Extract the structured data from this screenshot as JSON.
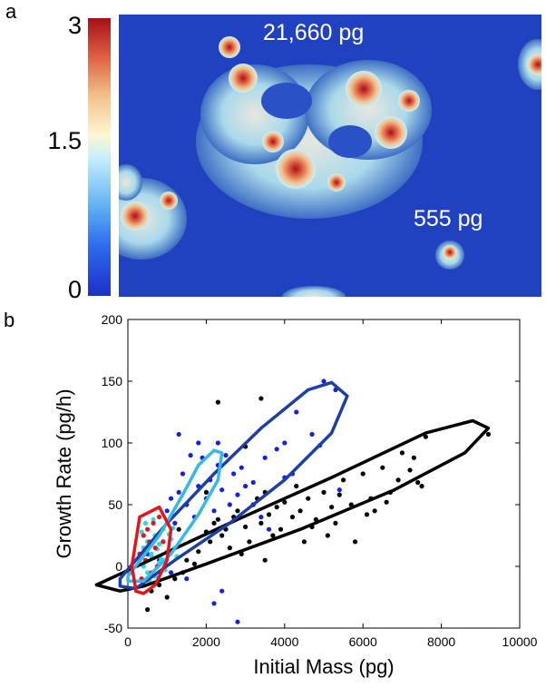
{
  "panels": {
    "a": "a",
    "b": "b"
  },
  "colorbar": {
    "max": "3",
    "mid": "1.5",
    "min": "0"
  },
  "afm": {
    "label_large": "21,660 pg",
    "label_small": "555 pg"
  },
  "colors": {
    "black": "#000000",
    "blue": "#1422e0",
    "cyan": "#2ed6e6",
    "red": "#e3141b",
    "dark_blue": "#1b3fa6",
    "light_blue": "#36b8e8"
  },
  "chart_data": {
    "type": "scatter",
    "xlabel": "Initial Mass (pg)",
    "ylabel": "Growth Rate (pg/h)",
    "xlim": [
      0,
      10000
    ],
    "ylim": [
      -50,
      200
    ],
    "xticks": [
      0,
      2000,
      4000,
      6000,
      8000,
      10000
    ],
    "yticks": [
      -50,
      0,
      50,
      100,
      150,
      200
    ],
    "series": [
      {
        "color": "#000000",
        "points": [
          [
            800,
            -15
          ],
          [
            1200,
            -10
          ],
          [
            1500,
            5
          ],
          [
            1800,
            12
          ],
          [
            2000,
            28
          ],
          [
            2200,
            35
          ],
          [
            2300,
            38
          ],
          [
            2500,
            30
          ],
          [
            2600,
            15
          ],
          [
            2700,
            40
          ],
          [
            2800,
            45
          ],
          [
            3000,
            32
          ],
          [
            3100,
            20
          ],
          [
            3200,
            50
          ],
          [
            3300,
            55
          ],
          [
            3400,
            35
          ],
          [
            3500,
            60
          ],
          [
            3600,
            42
          ],
          [
            3700,
            25
          ],
          [
            3800,
            48
          ],
          [
            3900,
            30
          ],
          [
            4000,
            52
          ],
          [
            4200,
            40
          ],
          [
            4400,
            45
          ],
          [
            4500,
            20
          ],
          [
            4600,
            55
          ],
          [
            4800,
            38
          ],
          [
            5000,
            60
          ],
          [
            5200,
            48
          ],
          [
            5300,
            35
          ],
          [
            5500,
            70
          ],
          [
            5700,
            50
          ],
          [
            5800,
            20
          ],
          [
            6000,
            75
          ],
          [
            6200,
            55
          ],
          [
            6300,
            45
          ],
          [
            6500,
            80
          ],
          [
            6700,
            60
          ],
          [
            6900,
            70
          ],
          [
            7000,
            92
          ],
          [
            7200,
            78
          ],
          [
            7400,
            68
          ],
          [
            7500,
            65
          ],
          [
            7600,
            105
          ],
          [
            3400,
            136
          ],
          [
            2300,
            133
          ],
          [
            9200,
            107
          ],
          [
            500,
            -35
          ],
          [
            600,
            -20
          ],
          [
            1000,
            -25
          ],
          [
            1400,
            -5
          ],
          [
            1700,
            2
          ],
          [
            2100,
            20
          ],
          [
            2400,
            25
          ],
          [
            2900,
            10
          ],
          [
            3500,
            5
          ],
          [
            4300,
            65
          ],
          [
            4700,
            32
          ],
          [
            5100,
            25
          ],
          [
            5400,
            58
          ],
          [
            6100,
            42
          ],
          [
            6600,
            52
          ],
          [
            7300,
            88
          ],
          [
            3000,
            97
          ],
          [
            2000,
            60
          ],
          [
            1300,
            30
          ]
        ]
      },
      {
        "color": "#1422e0",
        "points": [
          [
            500,
            10
          ],
          [
            700,
            25
          ],
          [
            900,
            20
          ],
          [
            1000,
            45
          ],
          [
            1100,
            55
          ],
          [
            1200,
            35
          ],
          [
            1300,
            60
          ],
          [
            1400,
            75
          ],
          [
            1500,
            50
          ],
          [
            1600,
            90
          ],
          [
            1700,
            40
          ],
          [
            1800,
            65
          ],
          [
            1900,
            88
          ],
          [
            2000,
            55
          ],
          [
            2100,
            70
          ],
          [
            2200,
            45
          ],
          [
            2300,
            82
          ],
          [
            2400,
            62
          ],
          [
            2500,
            90
          ],
          [
            2600,
            50
          ],
          [
            2700,
            75
          ],
          [
            2800,
            58
          ],
          [
            2900,
            80
          ],
          [
            3000,
            65
          ],
          [
            3200,
            68
          ],
          [
            3400,
            40
          ],
          [
            3600,
            30
          ],
          [
            3800,
            95
          ],
          [
            4000,
            100
          ],
          [
            4300,
            125
          ],
          [
            4700,
            107
          ],
          [
            4900,
            98
          ],
          [
            5000,
            150
          ],
          [
            5300,
            143
          ],
          [
            5400,
            62
          ],
          [
            2200,
            -30
          ],
          [
            2400,
            -20
          ],
          [
            1500,
            -10
          ],
          [
            1100,
            -5
          ],
          [
            800,
            5
          ],
          [
            1300,
            107
          ],
          [
            1800,
            100
          ],
          [
            2300,
            100
          ],
          [
            2800,
            -45
          ],
          [
            4000,
            72
          ],
          [
            4200,
            75
          ],
          [
            3500,
            88
          ]
        ]
      },
      {
        "color": "#2ed6e6",
        "points": [
          [
            300,
            5
          ],
          [
            400,
            15
          ],
          [
            500,
            20
          ],
          [
            600,
            10
          ],
          [
            700,
            25
          ],
          [
            800,
            18
          ],
          [
            900,
            30
          ],
          [
            1000,
            12
          ],
          [
            1100,
            22
          ],
          [
            1200,
            15
          ],
          [
            400,
            0
          ],
          [
            500,
            -5
          ],
          [
            600,
            8
          ],
          [
            700,
            -8
          ],
          [
            800,
            3
          ],
          [
            350,
            28
          ],
          [
            450,
            35
          ],
          [
            550,
            -12
          ],
          [
            650,
            38
          ],
          [
            750,
            14
          ],
          [
            850,
            6
          ],
          [
            950,
            -3
          ],
          [
            1050,
            26
          ],
          [
            1150,
            31
          ],
          [
            1250,
            8
          ]
        ]
      },
      {
        "color": "#e3141b",
        "points": [
          [
            300,
            10
          ],
          [
            400,
            25
          ],
          [
            500,
            30
          ],
          [
            600,
            -5
          ],
          [
            700,
            15
          ],
          [
            800,
            40
          ],
          [
            350,
            -10
          ],
          [
            450,
            5
          ],
          [
            550,
            20
          ],
          [
            650,
            35
          ],
          [
            750,
            0
          ],
          [
            900,
            20
          ]
        ]
      }
    ],
    "ellipses": [
      {
        "color": "#000000",
        "points": [
          [
            -800,
            -15
          ],
          [
            900,
            10
          ],
          [
            2800,
            38
          ],
          [
            5200,
            72
          ],
          [
            7600,
            108
          ],
          [
            8800,
            118
          ],
          [
            9200,
            112
          ],
          [
            8600,
            92
          ],
          [
            6800,
            62
          ],
          [
            4400,
            30
          ],
          [
            2000,
            2
          ],
          [
            400,
            -16
          ],
          [
            -200,
            -20
          ]
        ]
      },
      {
        "color": "#1b3fa6",
        "points": [
          [
            -200,
            -10
          ],
          [
            1000,
            35
          ],
          [
            2200,
            75
          ],
          [
            3400,
            112
          ],
          [
            4600,
            143
          ],
          [
            5200,
            149
          ],
          [
            5600,
            138
          ],
          [
            5200,
            108
          ],
          [
            4000,
            70
          ],
          [
            2600,
            35
          ],
          [
            1200,
            5
          ],
          [
            200,
            -18
          ],
          [
            -200,
            -16
          ]
        ]
      },
      {
        "color": "#36b8e8",
        "points": [
          [
            0,
            -8
          ],
          [
            800,
            25
          ],
          [
            1400,
            58
          ],
          [
            1800,
            82
          ],
          [
            2200,
            94
          ],
          [
            2400,
            92
          ],
          [
            2300,
            70
          ],
          [
            1800,
            42
          ],
          [
            1100,
            10
          ],
          [
            400,
            -12
          ],
          [
            0,
            -12
          ]
        ]
      },
      {
        "color": "#e3141b",
        "points": [
          [
            200,
            -18
          ],
          [
            100,
            0
          ],
          [
            300,
            40
          ],
          [
            800,
            48
          ],
          [
            1100,
            30
          ],
          [
            1000,
            5
          ],
          [
            700,
            -15
          ],
          [
            400,
            -22
          ],
          [
            200,
            -20
          ]
        ]
      }
    ]
  }
}
